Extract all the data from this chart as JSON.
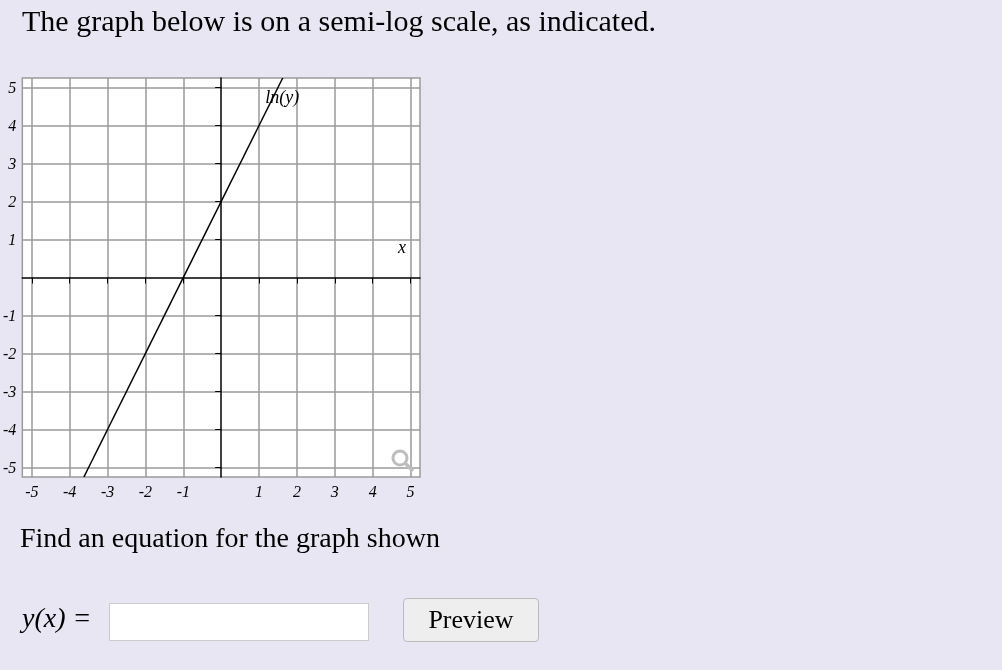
{
  "chart_data": {
    "type": "line",
    "title": "The graph below is on a semi-log scale, as indicated.",
    "xlabel": "x",
    "ylabel": "ln(y)",
    "x": [
      -3.625,
      1.625
    ],
    "values": [
      -5.25,
      5.25
    ],
    "color": "#000000",
    "xlim": [
      -5.25,
      5.25
    ],
    "xticks": [
      -5,
      -4,
      -3,
      -2,
      -1,
      1,
      2,
      3,
      4,
      5
    ],
    "ylim": [
      -5.25,
      5.25
    ],
    "yticks": [
      -5,
      -4,
      -3,
      -2,
      -1,
      1,
      2,
      3,
      4,
      5
    ],
    "grid": true,
    "marker": "none",
    "line_style": "solid",
    "annotations": [
      "Find an equation for the graph shown",
      "y(x) =",
      "Preview"
    ]
  }
}
